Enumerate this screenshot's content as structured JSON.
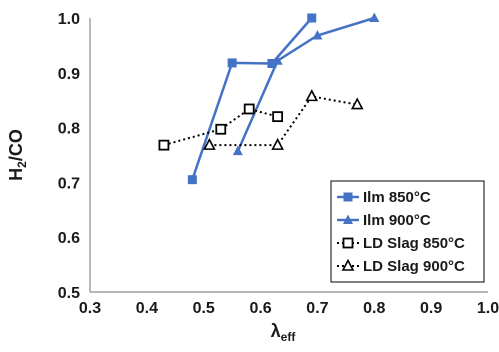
{
  "chart_data": {
    "type": "line",
    "xlabel": {
      "main": "λ",
      "sub": "eff"
    },
    "ylabel": {
      "main": "H",
      "sub": "2",
      "rest": "/CO"
    },
    "xlim": [
      0.3,
      1.0
    ],
    "ylim": [
      0.5,
      1.0
    ],
    "xticks": [
      "0.3",
      "0.4",
      "0.5",
      "0.6",
      "0.7",
      "0.8",
      "0.9",
      "1.0"
    ],
    "yticks": [
      "0.5",
      "0.6",
      "0.7",
      "0.8",
      "0.9",
      "1.0"
    ],
    "grid": false,
    "legend_position": "bottom-right",
    "series": [
      {
        "name": "Ilm 850°C",
        "color": "#4472C4",
        "marker": "square-filled",
        "line": "solid",
        "points": [
          [
            0.48,
            0.705
          ],
          [
            0.55,
            0.918
          ],
          [
            0.62,
            0.917
          ],
          [
            0.69,
            1.0
          ]
        ]
      },
      {
        "name": "Ilm 900°C",
        "color": "#4472C4",
        "marker": "triangle-filled",
        "line": "solid",
        "points": [
          [
            0.56,
            0.757
          ],
          [
            0.63,
            0.922
          ],
          [
            0.7,
            0.968
          ],
          [
            0.8,
            1.0
          ]
        ]
      },
      {
        "name": "LD Slag 850°C",
        "color": "#000000",
        "marker": "square-open",
        "line": "dotted",
        "points": [
          [
            0.43,
            0.768
          ],
          [
            0.53,
            0.797
          ],
          [
            0.58,
            0.834
          ],
          [
            0.63,
            0.82
          ]
        ]
      },
      {
        "name": "LD Slag 900°C",
        "color": "#000000",
        "marker": "triangle-open",
        "line": "dotted",
        "points": [
          [
            0.51,
            0.768
          ],
          [
            0.63,
            0.768
          ],
          [
            0.69,
            0.857
          ],
          [
            0.77,
            0.842
          ]
        ]
      }
    ]
  }
}
